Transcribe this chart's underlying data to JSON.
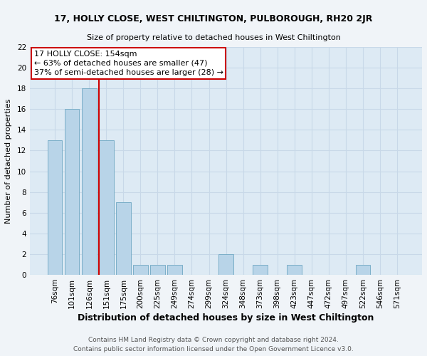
{
  "title": "17, HOLLY CLOSE, WEST CHILTINGTON, PULBOROUGH, RH20 2JR",
  "subtitle": "Size of property relative to detached houses in West Chiltington",
  "xlabel": "Distribution of detached houses by size in West Chiltington",
  "ylabel": "Number of detached properties",
  "categories": [
    "76sqm",
    "101sqm",
    "126sqm",
    "151sqm",
    "175sqm",
    "200sqm",
    "225sqm",
    "249sqm",
    "274sqm",
    "299sqm",
    "324sqm",
    "348sqm",
    "373sqm",
    "398sqm",
    "423sqm",
    "447sqm",
    "472sqm",
    "497sqm",
    "522sqm",
    "546sqm",
    "571sqm"
  ],
  "values": [
    13,
    16,
    18,
    13,
    7,
    1,
    1,
    1,
    0,
    0,
    2,
    0,
    1,
    0,
    1,
    0,
    0,
    0,
    1,
    0,
    0
  ],
  "bar_color": "#b8d4e8",
  "bar_edge_color": "#7aaec8",
  "property_label": "17 HOLLY CLOSE: 154sqm",
  "annotation_line1": "← 63% of detached houses are smaller (47)",
  "annotation_line2": "37% of semi-detached houses are larger (28) →",
  "annotation_box_color": "#ffffff",
  "annotation_box_edge": "#cc0000",
  "vline_color": "#cc0000",
  "footer1": "Contains HM Land Registry data © Crown copyright and database right 2024.",
  "footer2": "Contains public sector information licensed under the Open Government Licence v3.0.",
  "ylim": [
    0,
    22
  ],
  "yticks": [
    0,
    2,
    4,
    6,
    8,
    10,
    12,
    14,
    16,
    18,
    20,
    22
  ],
  "grid_color": "#c8d8e8",
  "bg_color": "#ddeaf4",
  "fig_bg_color": "#f0f4f8",
  "title_fontsize": 9,
  "subtitle_fontsize": 8,
  "xlabel_fontsize": 9,
  "ylabel_fontsize": 8,
  "tick_fontsize": 7.5,
  "footer_fontsize": 6.5,
  "ann_fontsize": 8
}
